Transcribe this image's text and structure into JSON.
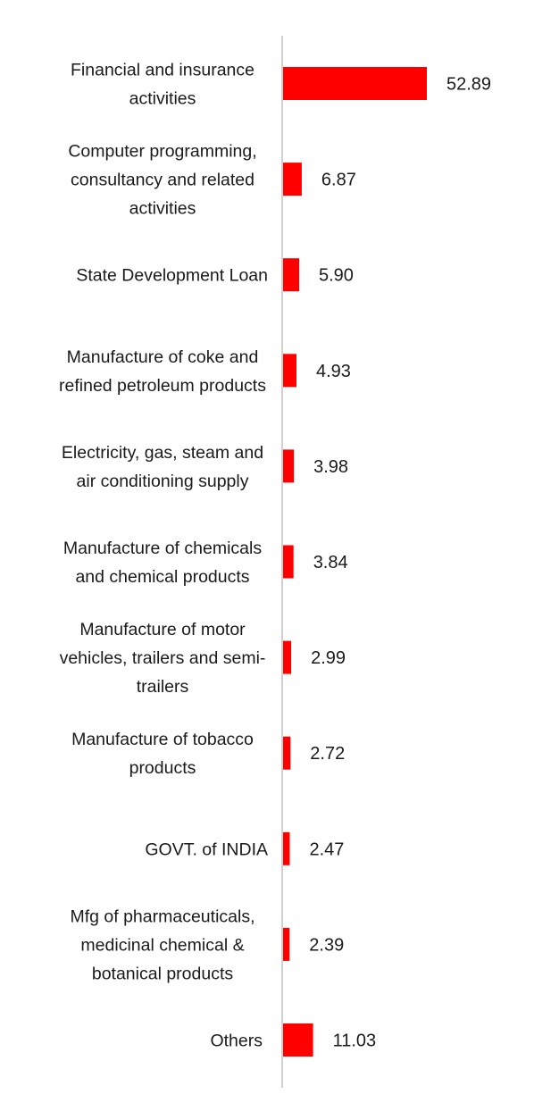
{
  "chart_data": {
    "type": "bar",
    "orientation": "horizontal",
    "categories": [
      [
        "Financial and insurance",
        "activities"
      ],
      [
        "Computer programming,",
        "consultancy and related",
        "activities"
      ],
      [
        "State Development Loan"
      ],
      [
        "Manufacture of coke and",
        "refined petroleum products"
      ],
      [
        "Electricity, gas, steam and",
        "air conditioning supply"
      ],
      [
        "Manufacture of chemicals",
        "and chemical products"
      ],
      [
        "Manufacture of motor",
        "vehicles, trailers and semi-",
        "trailers"
      ],
      [
        "Manufacture of tobacco",
        "products"
      ],
      [
        "GOVT. of INDIA"
      ],
      [
        "Mfg of pharmaceuticals,",
        "medicinal chemical &",
        "botanical products"
      ],
      [
        "Others"
      ]
    ],
    "values": [
      52.89,
      6.87,
      5.9,
      4.93,
      3.98,
      3.84,
      2.99,
      2.72,
      2.47,
      2.39,
      11.03
    ],
    "value_labels": [
      "52.89",
      "6.87",
      "5.90",
      "4.93",
      "3.98",
      "3.84",
      "2.99",
      "2.72",
      "2.47",
      "2.39",
      "11.03"
    ],
    "bar_color": "#ff0000",
    "axis_color": "#d0d0d0",
    "xlim": [
      0,
      100
    ],
    "grid": false,
    "legend": "none"
  }
}
